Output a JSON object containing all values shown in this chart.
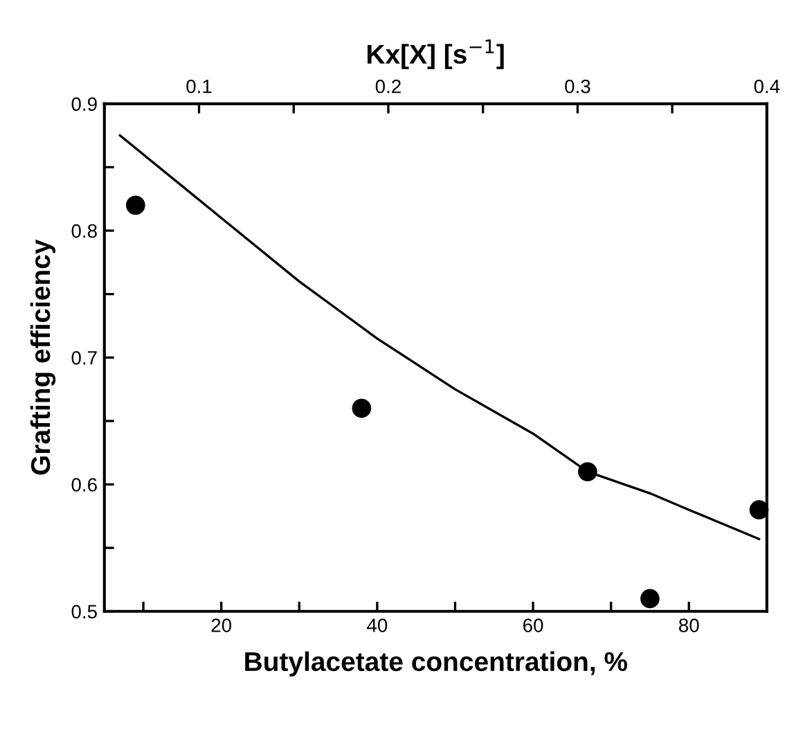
{
  "chart_data": {
    "type": "scatter",
    "xlabel": "Butylacetate concentration, %",
    "ylabel": "Grafting efficiency",
    "x2label": "Kx[X] [s$^{−1}$]",
    "xlim": [
      5,
      90
    ],
    "ylim": [
      0.5,
      0.9
    ],
    "x2lim": [
      0.05,
      0.4
    ],
    "xticks": [
      {
        "value": 10,
        "label": null
      },
      20,
      {
        "value": 30,
        "label": null
      },
      40,
      {
        "value": 50,
        "label": null
      },
      60,
      {
        "value": 70,
        "label": null
      },
      80
    ],
    "yticks": [
      0.5,
      {
        "value": 0.55,
        "label": null
      },
      0.6,
      {
        "value": 0.65,
        "label": null
      },
      0.7,
      {
        "value": 0.75,
        "label": null
      },
      0.8,
      {
        "value": 0.85,
        "label": null
      },
      0.9
    ],
    "x2ticks": [
      0.1,
      {
        "value": 0.15,
        "label": null
      },
      0.2,
      {
        "value": 0.25,
        "label": null
      },
      0.3,
      {
        "value": 0.35,
        "label": null
      },
      0.4
    ],
    "grid": false,
    "legend": false,
    "series": [
      {
        "color": "#000000",
        "marker": "circle",
        "x": [
          9,
          38,
          67,
          75,
          89
        ],
        "values": [
          0.82,
          0.66,
          0.61,
          0.51,
          0.58
        ]
      },
      {
        "type": "line",
        "color": "#000000",
        "line_style": "solid",
        "x": [
          7,
          20,
          30,
          40,
          50,
          60,
          67,
          75,
          80,
          89
        ],
        "values": [
          0.875,
          0.81,
          0.76,
          0.715,
          0.675,
          0.64,
          0.61,
          0.593,
          0.58,
          0.557
        ]
      }
    ]
  }
}
